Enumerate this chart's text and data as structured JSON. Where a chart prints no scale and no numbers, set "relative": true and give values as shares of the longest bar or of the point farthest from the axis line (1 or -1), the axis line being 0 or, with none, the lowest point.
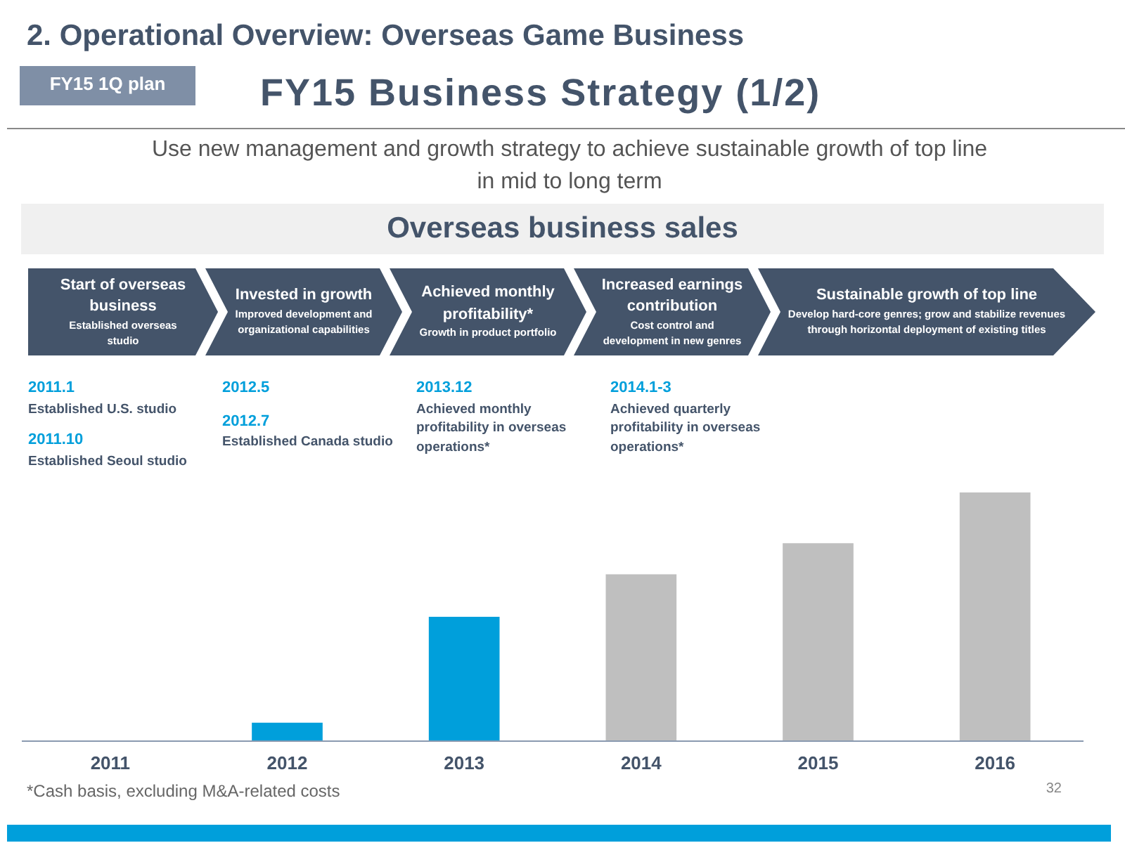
{
  "chart_data": {
    "type": "bar",
    "relative": true,
    "title": "2. Operational Overview: Overseas Game Business",
    "subtitle": "FY15 Business Strategy (1/2)",
    "categories": [
      "2011",
      "2012",
      "2013",
      "2014",
      "2015",
      "2016"
    ],
    "values": [
      0,
      0.074,
      0.5,
      0.671,
      0.796,
      1
    ],
    "colors": [
      "#bfbfbf",
      "#009fdb",
      "#009fdb",
      "#bfbfbf",
      "#bfbfbf",
      "#bfbfbf"
    ],
    "grid": false,
    "annotations": [
      "FY15 1Q plan",
      "Use new management and growth strategy to achieve sustainable growth of top line in mid to long term",
      "Overseas business sales",
      "Start of overseas business\nEstablished overseas studio",
      "Invested in growth\nImproved development and organizational capabilities",
      "Achieved monthly profitability*\nGrowth in product portfolio",
      "Increased earnings contribution\nCost control and development in new genres",
      "Sustainable growth of top line\nDevelop hard-core genres; grow and stabilize revenues through horizontal deployment of existing titles",
      "2011.1\nEstablished U.S. studio",
      "2011.10\nEstablished Seoul studio",
      "2012.5",
      "2012.7\nEstablished Canada studio",
      "2013.12\nAchieved monthly profitability in overseas operations*",
      "2014.1-3\nAchieved quarterly profitability in overseas operations*",
      "*Cash basis, excluding M&A-related costs",
      "32"
    ]
  }
}
